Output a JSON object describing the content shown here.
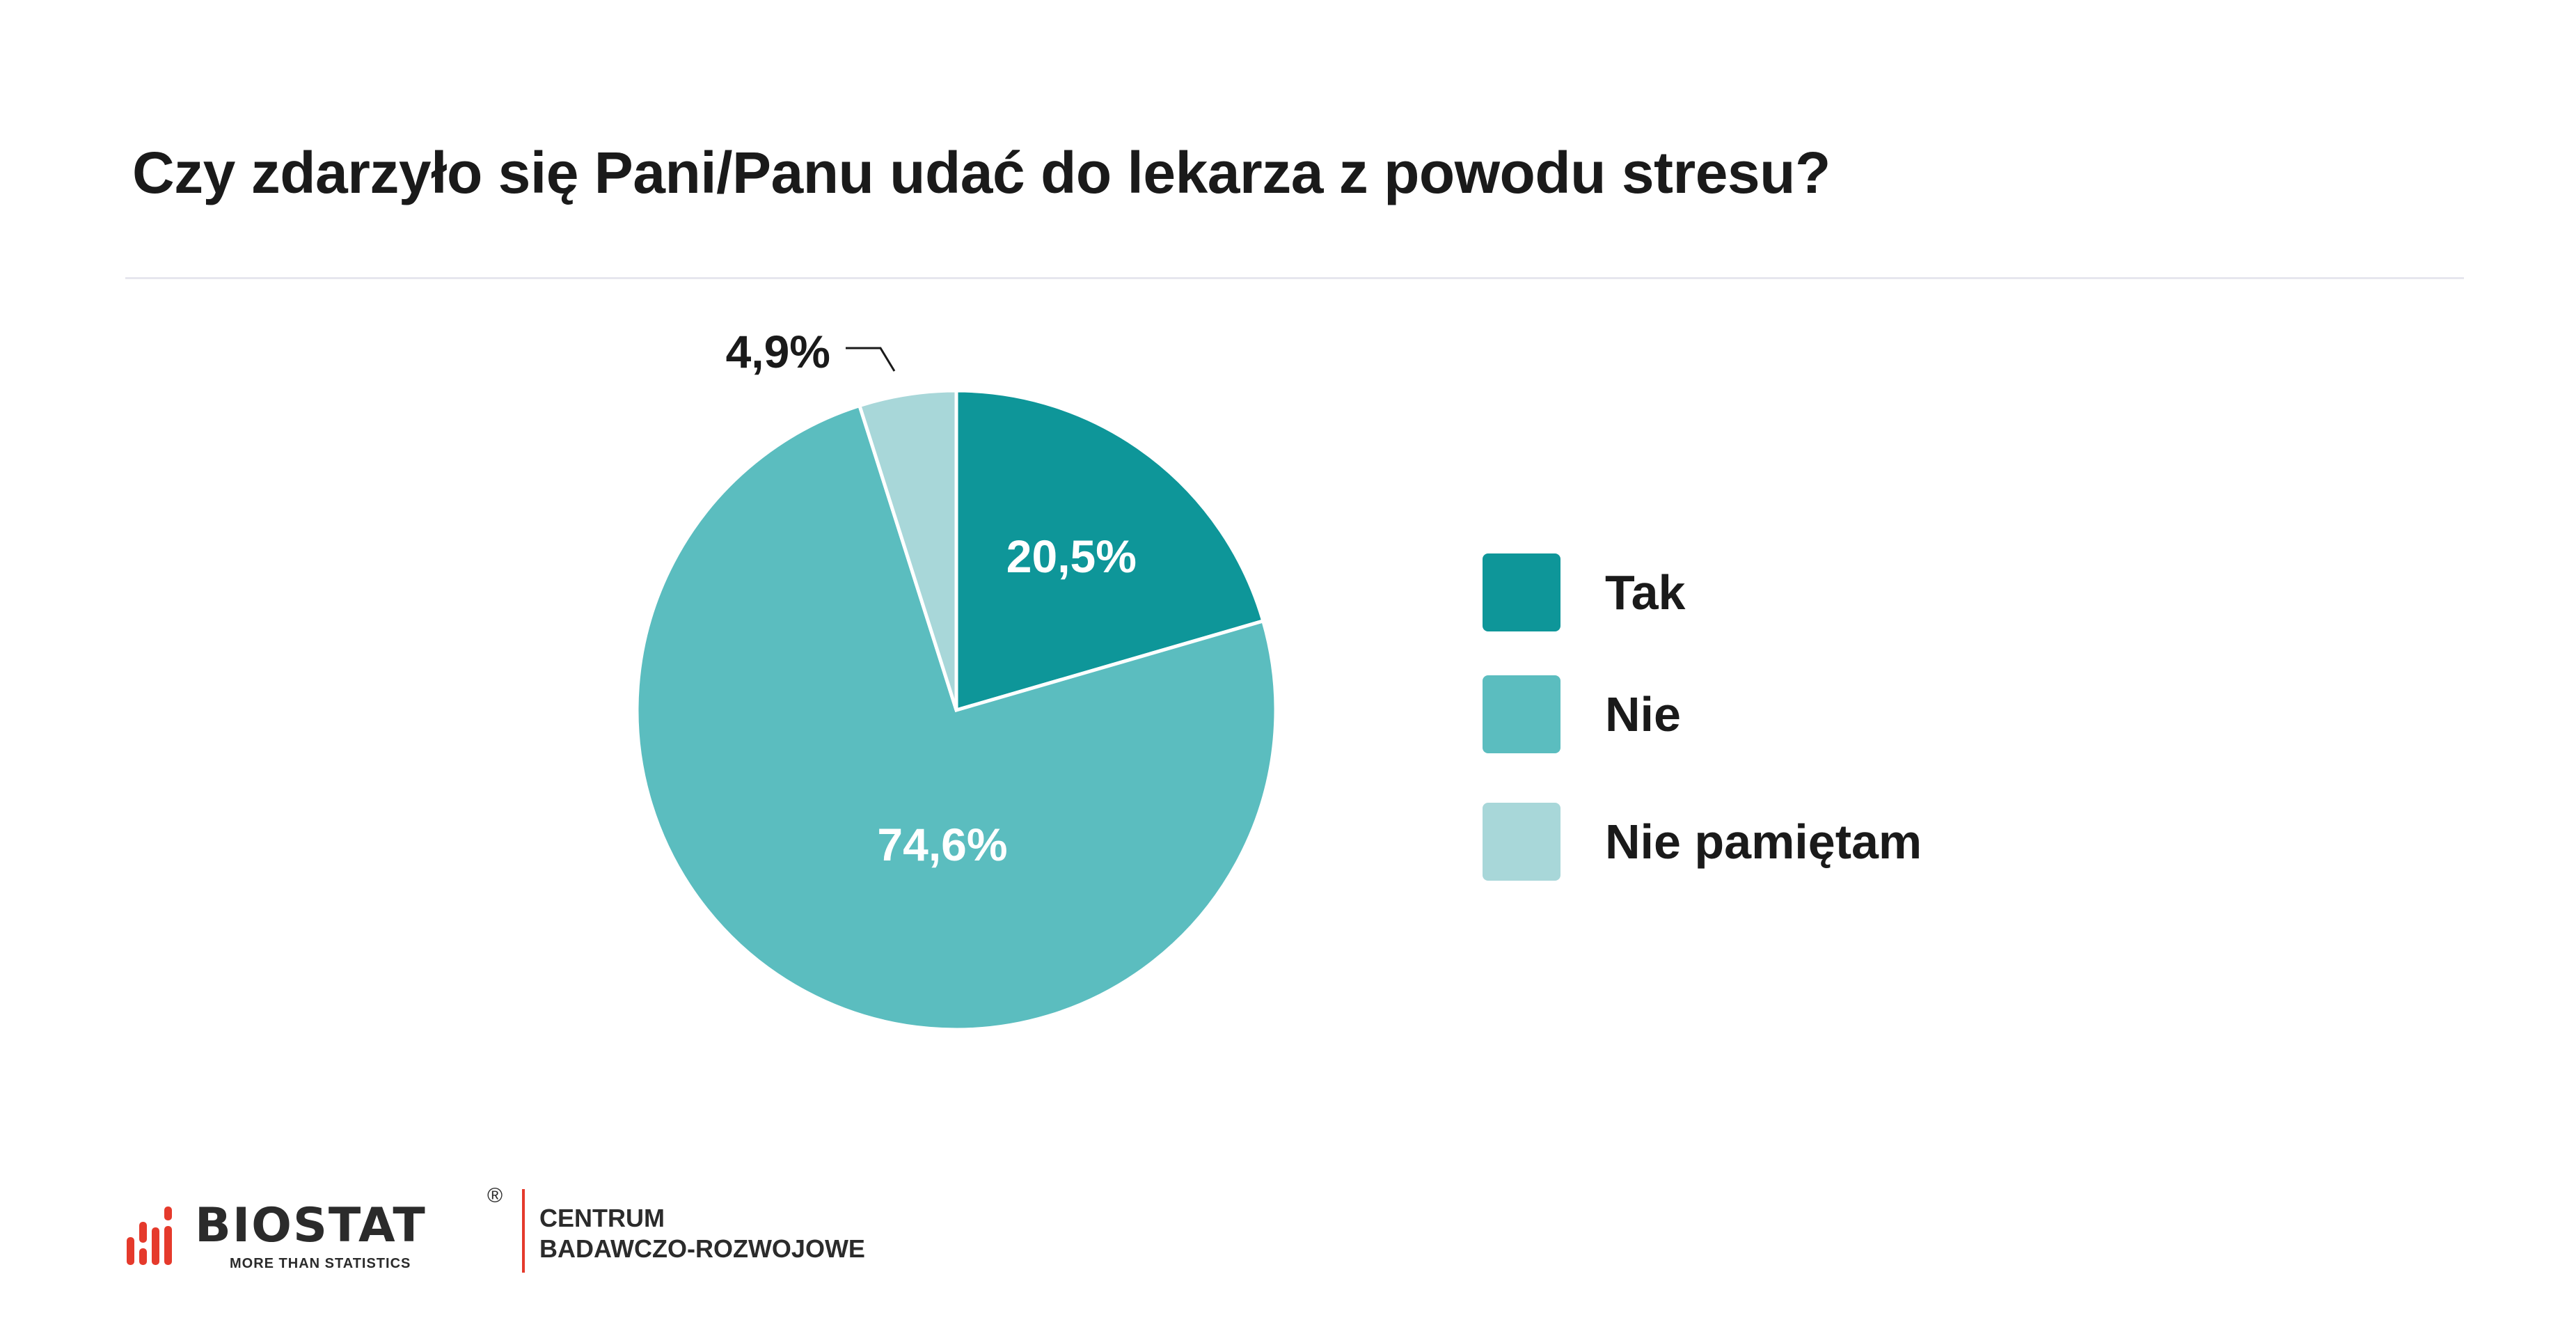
{
  "title": "Czy zdarzyło się Pani/Panu udać do lekarza z powodu stresu?",
  "chart_data": {
    "type": "pie",
    "title": "Czy zdarzyło się Pani/Panu udać do lekarza z powodu stresu?",
    "categories": [
      "Tak",
      "Nie",
      "Nie pamiętam"
    ],
    "values": [
      20.5,
      74.6,
      4.9
    ],
    "labels": [
      "20,5%",
      "74,6%",
      "4,9%"
    ],
    "colors": [
      "#0E9699",
      "#5BBDBF",
      "#A8D7D9"
    ],
    "start_angle": "12 o'clock",
    "direction": "clockwise",
    "legend_position": "right"
  },
  "logo": {
    "brand": "BIOSTAT",
    "registered": "®",
    "tagline": "MORE THAN STATISTICS",
    "line1": "CENTRUM",
    "line2": "BADAWCZO-ROZWOJOWE",
    "accent_color": "#E53A2C"
  }
}
